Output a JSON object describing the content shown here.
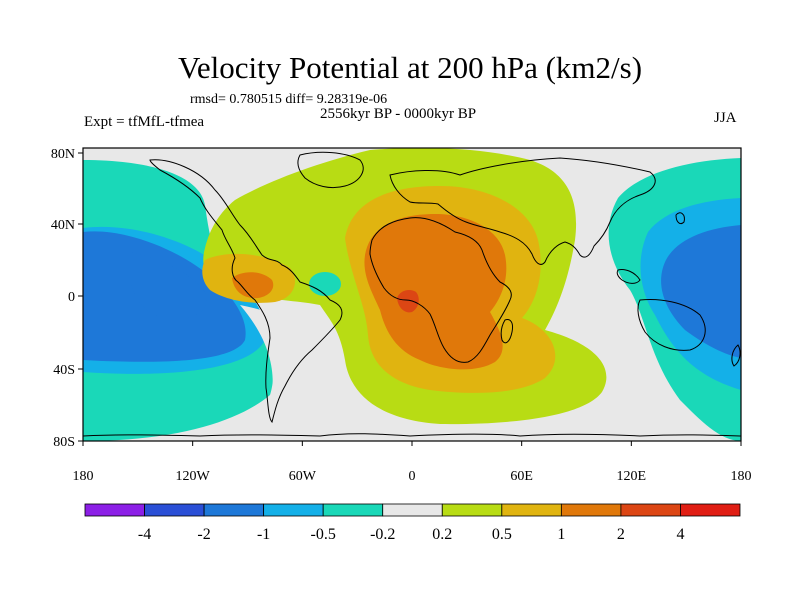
{
  "title": "Velocity Potential at 200 hPa (km2/s)",
  "stats_line": "rmsd= 0.780515 diff= 9.28319e-06",
  "period": "2556kyr BP - 0000kyr BP",
  "experiment": "Expt = tfMfL-tfmea",
  "season": "JJA",
  "axes": {
    "lon_ticks": [
      "180",
      "120W",
      "60W",
      "0",
      "60E",
      "120E",
      "180"
    ],
    "lat_ticks": [
      "80N",
      "40N",
      "0",
      "40S",
      "80S"
    ]
  },
  "colorbar": {
    "labels": [
      "-4",
      "-2",
      "-1",
      "-0.5",
      "-0.2",
      "0.2",
      "0.5",
      "1",
      "2",
      "4"
    ],
    "colors": [
      "#8c1fe6",
      "#2a4fd6",
      "#1e78d8",
      "#14b0e8",
      "#1ad8b8",
      "#e8e8e8",
      "#b8dc14",
      "#e0b410",
      "#e0780a",
      "#dc4614",
      "#e01e14"
    ]
  },
  "palette": {
    "land_outline": "#000000",
    "neutral": "#e8e8e8"
  }
}
